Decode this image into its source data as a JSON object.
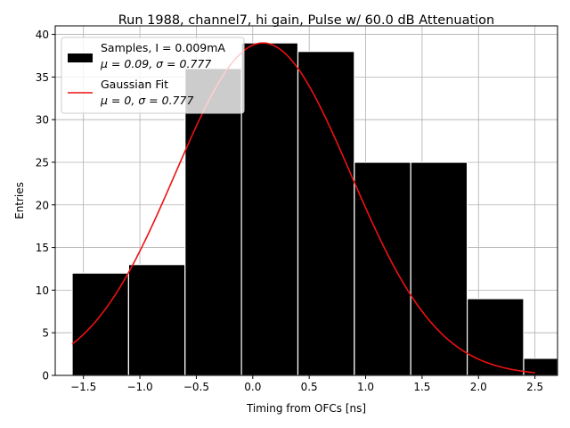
{
  "chart_data": {
    "type": "bar",
    "title": "Run 1988, channel7, hi gain, Pulse w/ 60.0 dB Attenuation",
    "xlabel": "Timing from OFCs [ns]",
    "ylabel": "Entries",
    "xlim": [
      -1.75,
      2.7
    ],
    "ylim": [
      0,
      41
    ],
    "xticks": [
      -1.5,
      -1.0,
      -0.5,
      0.0,
      0.5,
      1.0,
      1.5,
      2.0,
      2.5
    ],
    "xtick_labels": [
      "−1.5",
      "−1.0",
      "−0.5",
      "0.0",
      "0.5",
      "1.0",
      "1.5",
      "2.0",
      "2.5"
    ],
    "yticks": [
      0,
      5,
      10,
      15,
      20,
      25,
      30,
      35,
      40
    ],
    "ytick_labels": [
      "0",
      "5",
      "10",
      "15",
      "20",
      "25",
      "30",
      "35",
      "40"
    ],
    "grid": true,
    "legend_position": "top-left",
    "bin_edges": [
      -1.6,
      -1.1,
      -0.6,
      -0.1,
      0.4,
      0.9,
      1.4,
      1.9,
      2.4,
      2.9
    ],
    "bins": [
      {
        "x0": -1.6,
        "x1": -1.1,
        "count": 12
      },
      {
        "x0": -1.1,
        "x1": -0.6,
        "count": 13
      },
      {
        "x0": -0.6,
        "x1": -0.1,
        "count": 36
      },
      {
        "x0": -0.1,
        "x1": 0.4,
        "count": 39
      },
      {
        "x0": 0.4,
        "x1": 0.9,
        "count": 38
      },
      {
        "x0": 0.9,
        "x1": 1.4,
        "count": 25
      },
      {
        "x0": 1.4,
        "x1": 1.9,
        "count": 25
      },
      {
        "x0": 1.9,
        "x1": 2.4,
        "count": 9
      },
      {
        "x0": 2.4,
        "x1": 2.9,
        "count": 2
      }
    ],
    "fit": {
      "mu": 0.09,
      "sigma": 0.777,
      "amplitude": 39,
      "x_range": [
        -1.6,
        2.5
      ]
    },
    "series": [
      {
        "name": "Samples, I = 0.009mA",
        "name_line2": "μ = 0.09, σ = 0.777",
        "color": "#000000",
        "kind": "histogram"
      },
      {
        "name": "Gaussian Fit",
        "name_line2": "μ = 0, σ = 0.777",
        "color": "#ee1111",
        "kind": "line"
      }
    ]
  }
}
